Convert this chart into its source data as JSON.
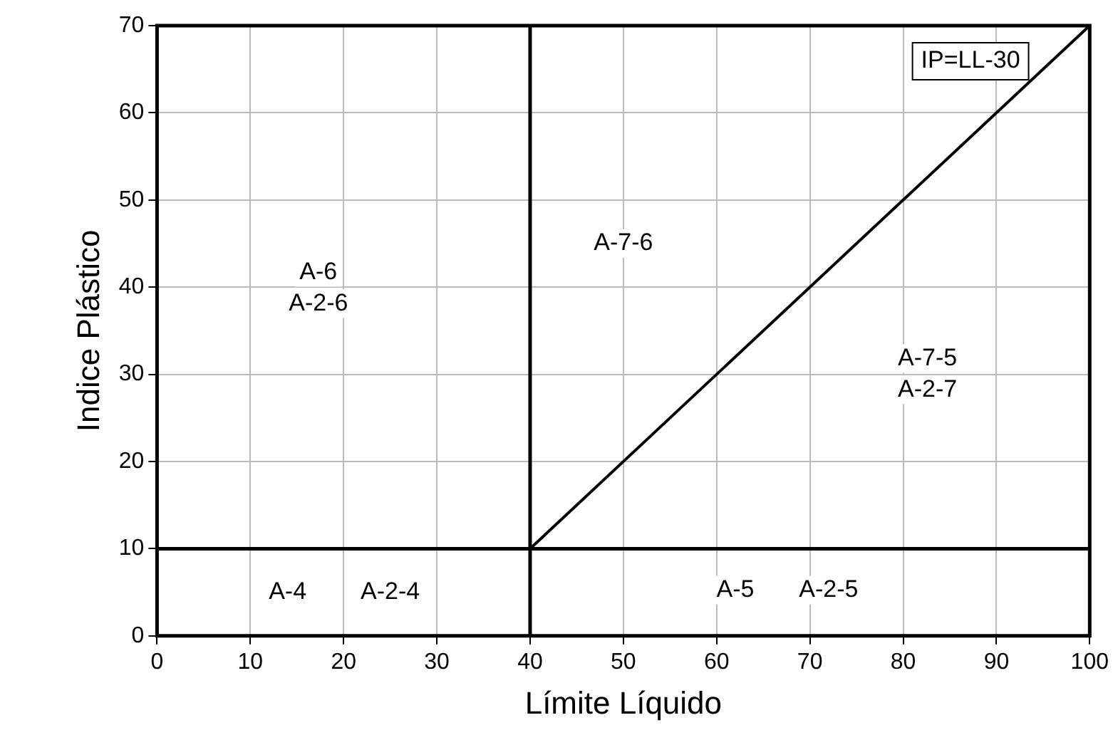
{
  "chart_data": {
    "type": "line",
    "xlabel": "Límite Líquido",
    "ylabel": "Indice Plástico",
    "x": [
      40,
      100
    ],
    "series": [
      {
        "color": "#000000",
        "values": [
          10,
          70
        ]
      },
      {
        "color": "#000000",
        "x": [
          40,
          40
        ],
        "values": [
          0,
          70
        ]
      },
      {
        "color": "#000000",
        "x": [
          0,
          100
        ],
        "values": [
          10,
          10
        ]
      }
    ],
    "xlim": [
      0,
      100
    ],
    "ylim": [
      0,
      70
    ],
    "xticks": [
      0,
      10,
      20,
      30,
      40,
      50,
      60,
      70,
      80,
      90,
      100
    ],
    "yticks": [
      0,
      10,
      20,
      30,
      40,
      50,
      60,
      70
    ],
    "grid": true,
    "legend": false,
    "marker": "none",
    "line_style": "solid",
    "annotations": [
      "IP=LL-30",
      "A-6\nA-2-6",
      "A-7-6",
      "A-7-5\nA-2-7",
      "A-4",
      "A-2-4",
      "A-5",
      "A-2-5"
    ]
  }
}
